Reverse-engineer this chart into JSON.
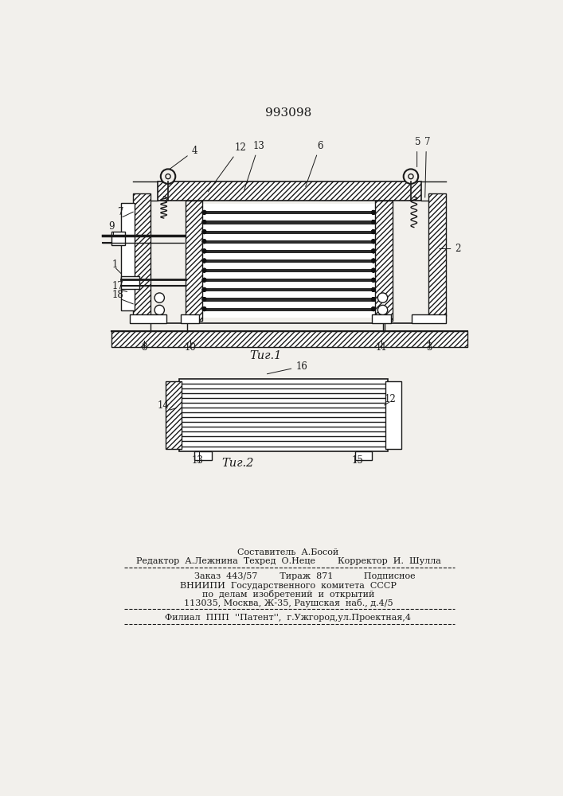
{
  "patent_num": "993098",
  "fig1_caption": "Τиг.1",
  "fig2_caption": "Τиг.2",
  "bg_color": "#f2f0ec",
  "lc": "#1a1a1a",
  "footer": {
    "line1": "Составитель  А.Босой",
    "line2": "Редактор  А.Лежнина  Техред  О.Неце        Корректор  И.  Шулла",
    "line3": "Заказ  443/57        Тираж  871           Подписное",
    "line4": "ВНИИПИ  Государственного  комитета  СССР",
    "line5": "по  делам  изобретений  и  открытий",
    "line6": "113035, Москва, Ж-35, Раушская  наб., д.4/5",
    "line7": "Филиал  ППП  ''Патент'',  г.Ужгород,ул.Проектная,4"
  }
}
